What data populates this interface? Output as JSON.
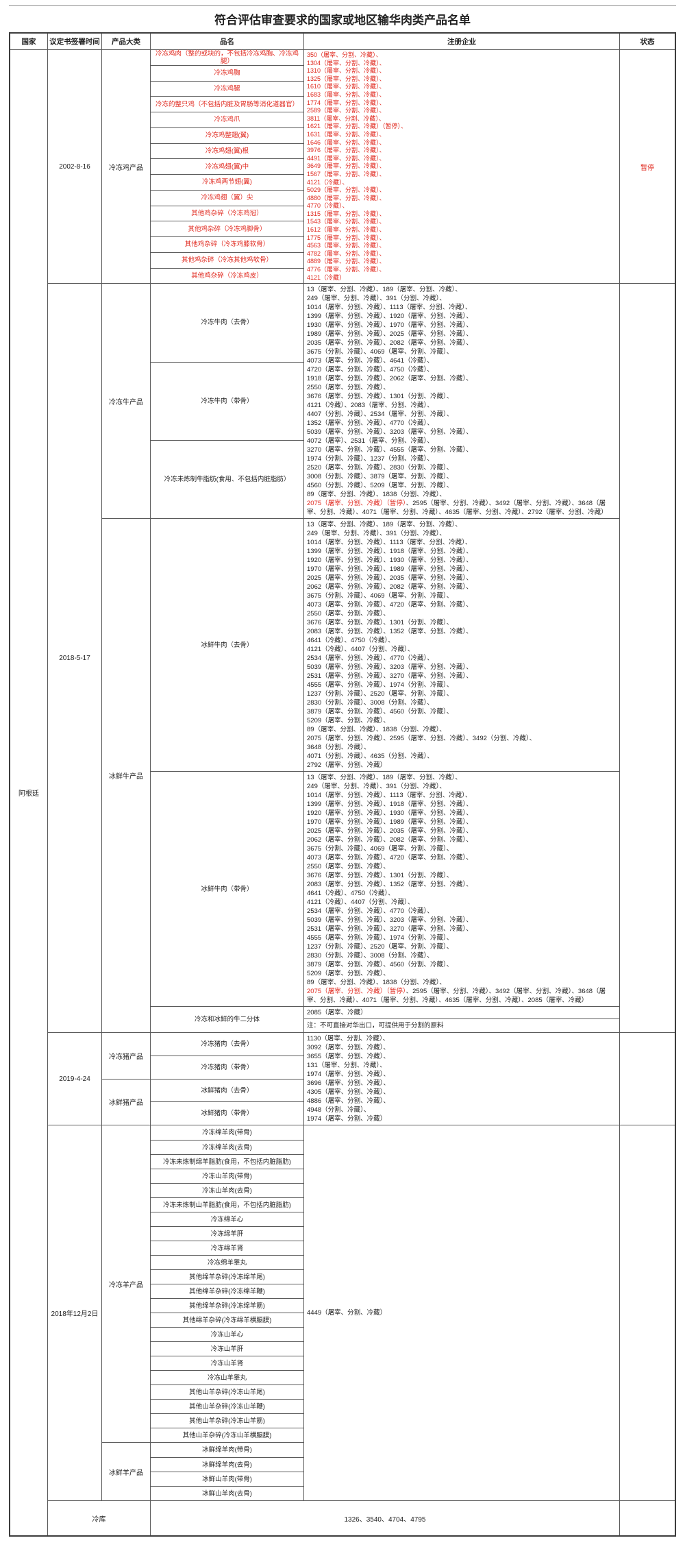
{
  "title": "符合评估审查要求的国家或地区输华肉类产品名单",
  "columns": [
    "国家",
    "议定书签署时间",
    "产品大类",
    "品名",
    "注册企业",
    "状态"
  ],
  "country": "阿根廷",
  "colors": {
    "accent_red": "#e0281e",
    "border": "#5a5a5a"
  },
  "footer": {
    "label": "冷库",
    "value": "1326、3540、4704、4795"
  },
  "sections": [
    {
      "id": "frozen-chicken",
      "date": "2002-8-16",
      "status": "暂停",
      "status_red": true,
      "blocks": [
        {
          "categories": [
            {
              "label": "冷冻鸡产品",
              "products": [
                {
                  "name": "冷冻鸡肉（整的或块的，不包括冷冻鸡胸、冷冻鸡腿）",
                  "red": true
                },
                {
                  "name": "冷冻鸡胸",
                  "red": true
                },
                {
                  "name": "冷冻鸡腿",
                  "red": true
                },
                {
                  "name": "冷冻的整只鸡（不包括内脏及胃肠等消化道器官）",
                  "red": true
                },
                {
                  "name": "冷冻鸡爪",
                  "red": true
                },
                {
                  "name": "冷冻鸡整翅(翼)",
                  "red": true
                },
                {
                  "name": "冷冻鸡翅(翼)根",
                  "red": true
                },
                {
                  "name": "冷冻鸡翅(翼)中",
                  "red": true
                },
                {
                  "name": "冷冻鸡两节翅(翼)",
                  "red": true
                },
                {
                  "name": "冷冻鸡翅（翼）尖",
                  "red": true
                },
                {
                  "name": "其他鸡杂碎（冷冻鸡冠）",
                  "red": true
                },
                {
                  "name": "其他鸡杂碎（冷冻鸡脚骨）",
                  "red": true
                },
                {
                  "name": "其他鸡杂碎（冷冻鸡膝软骨）",
                  "red": true
                },
                {
                  "name": "其他鸡杂碎（冷冻其他鸡软骨）",
                  "red": true
                },
                {
                  "name": "其他鸡杂碎（冷冻鸡皮）",
                  "red": true
                }
              ]
            }
          ],
          "ent": {
            "red": true,
            "cls": "ent-s",
            "lines": [
              "350（屠宰、分割、冷藏）、",
              "1304（屠宰、分割、冷藏）、",
              "1310（屠宰、分割、冷藏）、",
              "1325（屠宰、分割、冷藏）、",
              "1610（屠宰、分割、冷藏）、",
              "1683（屠宰、分割、冷藏）、",
              "1774（屠宰、分割、冷藏）、",
              "2589（屠宰、分割、冷藏）、",
              "3811（屠宰、分割、冷藏）、",
              "1621（屠宰、分割、冷藏）（暂停）、",
              "1631（屠宰、分割、冷藏）、",
              "1646（屠宰、分割、冷藏）、",
              "3976（屠宰、分割、冷藏）、",
              "4491（屠宰、分割、冷藏）、",
              "3649（屠宰、分割、冷藏）、",
              "1567（屠宰、分割、冷藏）、",
              "4121（冷藏）、",
              "5029（屠宰、分割、冷藏）、",
              "4880（屠宰、分割、冷藏）、",
              "4770（冷藏）、",
              "1315（屠宰、分割、冷藏）、",
              "1543（屠宰、分割、冷藏）、",
              "1612（屠宰、分割、冷藏）、",
              "1775（屠宰、分割、冷藏）、",
              "4563（屠宰、分割、冷藏）、",
              "4782（屠宰、分割、冷藏）、",
              "4889（屠宰、分割、冷藏）、",
              "4776（屠宰、分割、冷藏）、",
              "4121（冷藏）"
            ]
          }
        }
      ]
    },
    {
      "id": "beef",
      "date": "2018-5-17",
      "status": "",
      "status_red": false,
      "blocks": [
        {
          "categories": [
            {
              "label": "冷冻牛产品",
              "products": [
                {
                  "name": "冷冻牛肉（去骨）"
                },
                {
                  "name": "冷冻牛肉（带骨）"
                },
                {
                  "name": "冷冻未炼制牛脂肪(食用、不包括内脏脂肪）"
                }
              ]
            }
          ],
          "ent": {
            "lines": [
              "13（屠宰、分割、冷藏）、189（屠宰、分割、冷藏）、",
              "249（屠宰、分割、冷藏）、391（分割、冷藏）、",
              "1014（屠宰、分割、冷藏）、1113（屠宰、分割、冷藏）、",
              "1399（屠宰、分割、冷藏）、1920（屠宰、分割、冷藏）、",
              "1930（屠宰、分割、冷藏）、1970（屠宰、分割、冷藏）、",
              "1989（屠宰、分割、冷藏）、2025（屠宰、分割、冷藏）、",
              "2035（屠宰、分割、冷藏）、2082（屠宰、分割、冷藏）、",
              "3675（分割、冷藏）、4069（屠宰、分割、冷藏）、",
              "4073（屠宰、分割、冷藏）、4641（冷藏）、",
              "4720（屠宰、分割、冷藏）、4750（冷藏）、",
              "1918（屠宰、分割、冷藏）、2062（屠宰、分割、冷藏）、",
              "2550（屠宰、分割、冷藏）、",
              "3676（屠宰、分割、冷藏）、1301（分割、冷藏）、",
              "4121（冷藏）、2083（屠宰、分割、冷藏）、",
              "4407（分割、冷藏）、2534（屠宰、分割、冷藏）、",
              "1352（屠宰、分割、冷藏）、4770（冷藏）、",
              "5039（屠宰、分割、冷藏）、3203（屠宰、分割、冷藏）、",
              "4072（屠宰）、2531（屠宰、分割、冷藏）、",
              "3270（屠宰、分割、冷藏）、4555（屠宰、分割、冷藏）、",
              "1974（分割、冷藏）、1237（分割、冷藏）、",
              "2520（屠宰、分割、冷藏）、2830（分割、冷藏）、",
              "3008（分割、冷藏）、3879（屠宰、分割、冷藏）、",
              "4560（分割、冷藏）、5209（屠宰、分割、冷藏）、",
              "89（屠宰、分割、冷藏）、1838（分割、冷藏）、",
              [
                {
                  "t": "2075（屠宰、分割、冷藏）（暂停）",
                  "red": true
                },
                {
                  "t": "、2595（屠宰、分割、冷藏）、3492（屠宰、分割、冷藏）、3648（屠宰、分割、冷藏）、4071（屠宰、分割、冷藏）、4635（屠宰、分割、冷藏）、2792（屠宰、分割、冷藏）"
                }
              ]
            ]
          }
        },
        {
          "perrow": true,
          "categories": [
            {
              "label": "冰鲜牛产品",
              "products": [
                {
                  "name": "冰鲜牛肉（去骨）",
                  "ent": {
                    "lines": [
                      "13（屠宰、分割、冷藏）、189（屠宰、分割、冷藏）、",
                      "249（屠宰、分割、冷藏）、391（分割、冷藏）、",
                      "1014（屠宰、分割、冷藏）、1113（屠宰、分割、冷藏）、",
                      "1399（屠宰、分割、冷藏）、1918（屠宰、分割、冷藏）、",
                      "1920（屠宰、分割、冷藏）、1930（屠宰、分割、冷藏）、",
                      "1970（屠宰、分割、冷藏）、1989（屠宰、分割、冷藏）、",
                      "2025（屠宰、分割、冷藏）、2035（屠宰、分割、冷藏）、",
                      "2062（屠宰、分割、冷藏）、2082（屠宰、分割、冷藏）、",
                      "3675（分割、冷藏）、4069（屠宰、分割、冷藏）、",
                      "4073（屠宰、分割、冷藏）、4720（屠宰、分割、冷藏）、",
                      "2550（屠宰、分割、冷藏）、",
                      "3676（屠宰、分割、冷藏）、1301（分割、冷藏）、",
                      "2083（屠宰、分割、冷藏）、1352（屠宰、分割、冷藏）、",
                      "4641（冷藏）、4750（冷藏）、",
                      "4121（冷藏）、4407（分割、冷藏）、",
                      "2534（屠宰、分割、冷藏）、4770（冷藏）、",
                      "5039（屠宰、分割、冷藏）、3203（屠宰、分割、冷藏）、",
                      "2531（屠宰、分割、冷藏）、3270（屠宰、分割、冷藏）、",
                      "4555（屠宰、分割、冷藏）、1974（分割、冷藏）、",
                      "1237（分割、冷藏）、2520（屠宰、分割、冷藏）、",
                      "2830（分割、冷藏）、3008（分割、冷藏）、",
                      "3879（屠宰、分割、冷藏）、4560（分割、冷藏）、",
                      "5209（屠宰、分割、冷藏）、",
                      "89（屠宰、分割、冷藏）、1838（分割、冷藏）、",
                      "2075（屠宰、分割、冷藏）、2595（屠宰、分割、冷藏）、3492（分割、冷藏）、",
                      "3648（分割、冷藏）、",
                      "4071（分割、冷藏）、4635（分割、冷藏）、",
                      "2792（屠宰、分割、冷藏）"
                    ]
                  }
                },
                {
                  "name": "冰鲜牛肉（带骨）",
                  "ent": {
                    "lines": [
                      "13（屠宰、分割、冷藏）、189（屠宰、分割、冷藏）、",
                      "249（屠宰、分割、冷藏）、391（分割、冷藏）、",
                      "1014（屠宰、分割、冷藏）、1113（屠宰、分割、冷藏）、",
                      "1399（屠宰、分割、冷藏）、1918（屠宰、分割、冷藏）、",
                      "1920（屠宰、分割、冷藏）、1930（屠宰、分割、冷藏）、",
                      "1970（屠宰、分割、冷藏）、1989（屠宰、分割、冷藏）、",
                      "2025（屠宰、分割、冷藏）、2035（屠宰、分割、冷藏）、",
                      "2062（屠宰、分割、冷藏）、2082（屠宰、分割、冷藏）、",
                      "3675（分割、冷藏）、4069（屠宰、分割、冷藏）、",
                      "4073（屠宰、分割、冷藏）、4720（屠宰、分割、冷藏）、",
                      "2550（屠宰、分割、冷藏）、",
                      "3676（屠宰、分割、冷藏）、1301（分割、冷藏）、",
                      "2083（屠宰、分割、冷藏）、1352（屠宰、分割、冷藏）、",
                      "4641（冷藏）、4750（冷藏）、",
                      "4121（冷藏）、4407（分割、冷藏）、",
                      "2534（屠宰、分割、冷藏）、4770（冷藏）、",
                      "5039（屠宰、分割、冷藏）、3203（屠宰、分割、冷藏）、",
                      "2531（屠宰、分割、冷藏）、3270（屠宰、分割、冷藏）、",
                      "4555（屠宰、分割、冷藏）、1974（分割、冷藏）、",
                      "1237（分割、冷藏）、2520（屠宰、分割、冷藏）、",
                      "2830（分割、冷藏）、3008（分割、冷藏）、",
                      "3879（屠宰、分割、冷藏）、4560（分割、冷藏）、",
                      "5209（屠宰、分割、冷藏）、",
                      "89（屠宰、分割、冷藏）、1838（分割、冷藏）、",
                      [
                        {
                          "t": "2075（屠宰、分割、冷藏）（暂停）",
                          "red": true
                        },
                        {
                          "t": "、2595（屠宰、分割、冷藏）、3492（屠宰、分割、冷藏）、3648（屠宰、分割、冷藏）、4071（屠宰、分割、冷藏）、4635（屠宰、分割、冷藏）、2085（屠宰、冷藏）"
                        }
                      ]
                    ]
                  }
                },
                {
                  "name": "冷冻和冰鲜的牛二分体",
                  "ent": {
                    "lines": [
                      "2085（屠宰、冷藏）"
                    ]
                  },
                  "note": "注：不可直接对华出口，可提供用于分割的原料"
                }
              ]
            }
          ]
        }
      ]
    },
    {
      "id": "pork",
      "date": "2019-4-24",
      "status": "",
      "status_red": false,
      "blocks": [
        {
          "categories": [
            {
              "label": "冷冻猪产品",
              "products": [
                {
                  "name": "冷冻猪肉（去骨）"
                },
                {
                  "name": "冷冻猪肉（带骨）"
                }
              ]
            },
            {
              "label": "冰鲜猪产品",
              "products": [
                {
                  "name": "冰鲜猪肉（去骨）"
                },
                {
                  "name": "冰鲜猪肉（带骨）"
                }
              ]
            }
          ],
          "ent": {
            "lines": [
              "1130（屠宰、分割、冷藏）、",
              "3092（屠宰、分割、冷藏）、",
              "3655（屠宰、分割、冷藏）、",
              "131（屠宰、分割、冷藏）、",
              "1974（屠宰、分割、冷藏）、",
              "3696（屠宰、分割、冷藏）、",
              "4305（屠宰、分割、冷藏）、",
              "4886（屠宰、分割、冷藏）、",
              "4948（分割、冷藏）、",
              "1974（屠宰、分割、冷藏）"
            ]
          }
        }
      ]
    },
    {
      "id": "sheep",
      "date": "2018年12月2日",
      "status": "",
      "status_red": false,
      "blocks": [
        {
          "categories": [
            {
              "label": "冷冻羊产品",
              "products": [
                {
                  "name": "冷冻绵羊肉(带骨)"
                },
                {
                  "name": "冷冻绵羊肉(去骨)"
                },
                {
                  "name": "冷冻未炼制绵羊脂肪(食用，不包括内脏脂肪)"
                },
                {
                  "name": "冷冻山羊肉(带骨)"
                },
                {
                  "name": "冷冻山羊肉(去骨)"
                },
                {
                  "name": "冷冻未炼制山羊脂肪(食用，不包括内脏脂肪)"
                },
                {
                  "name": "冷冻绵羊心"
                },
                {
                  "name": "冷冻绵羊肝"
                },
                {
                  "name": "冷冻绵羊肾"
                },
                {
                  "name": "冷冻绵羊睾丸"
                },
                {
                  "name": "其他绵羊杂碎(冷冻绵羊尾)"
                },
                {
                  "name": "其他绵羊杂碎(冷冻绵羊鞭)"
                },
                {
                  "name": "其他绵羊杂碎(冷冻绵羊筋)"
                },
                {
                  "name": "其他绵羊杂碎(冷冻绵羊横膈膜)"
                },
                {
                  "name": "冷冻山羊心"
                },
                {
                  "name": "冷冻山羊肝"
                },
                {
                  "name": "冷冻山羊肾"
                },
                {
                  "name": "冷冻山羊睾丸"
                },
                {
                  "name": "其他山羊杂碎(冷冻山羊尾)"
                },
                {
                  "name": "其他山羊杂碎(冷冻山羊鞭)"
                },
                {
                  "name": "其他山羊杂碎(冷冻山羊筋)"
                },
                {
                  "name": "其他山羊杂碎(冷冻山羊横膈膜)"
                }
              ]
            },
            {
              "label": "冰鲜羊产品",
              "products": [
                {
                  "name": "冰鲜绵羊肉(带骨)"
                },
                {
                  "name": "冰鲜绵羊肉(去骨)"
                },
                {
                  "name": "冰鲜山羊肉(带骨)"
                },
                {
                  "name": "冰鲜山羊肉(去骨)"
                }
              ]
            }
          ],
          "ent": {
            "center": true,
            "lines": [
              "4449（屠宰、分割、冷藏）"
            ]
          }
        }
      ]
    }
  ]
}
